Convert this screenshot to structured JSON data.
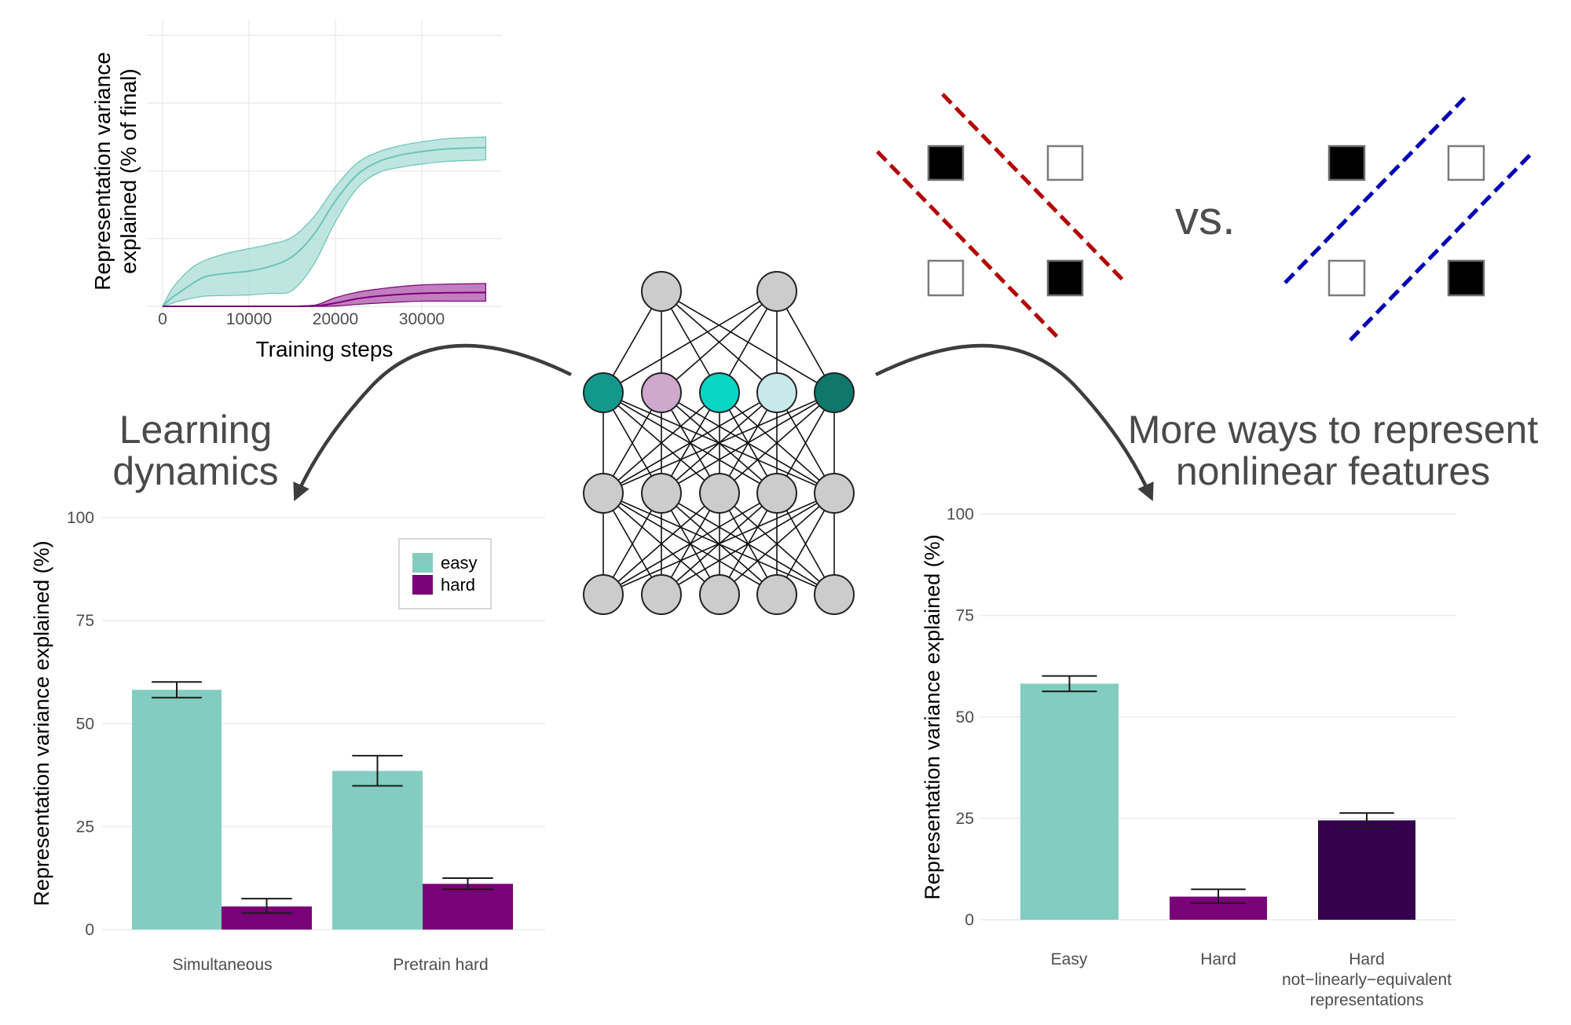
{
  "colors": {
    "easy": "#83ccc0",
    "hard": "#7a0177",
    "hard_nonlinear": "#35004d",
    "easy_band": "#a8dcd5",
    "easy_line": "#6cc4b4",
    "hard_band": "#b25fae",
    "hard_line": "#7a0177",
    "red_boundary": "#b40000",
    "blue_boundary": "#0000b4",
    "arrow": "#3d3d3d",
    "node_gray": "#cccccc",
    "node_hidden": [
      "#12998b",
      "#cfa8cc",
      "#0ad4c4",
      "#c8e9ea",
      "#0f776b"
    ]
  },
  "labels": {
    "learning_dynamics": [
      "Learning",
      "dynamics"
    ],
    "more_ways": [
      "More ways to represent",
      "nonlinear features"
    ],
    "vs": "vs."
  },
  "chart_data": [
    {
      "id": "learning-curve",
      "type": "area",
      "title": "",
      "xlabel": "Training steps",
      "ylabel": [
        "Representation variance",
        "explained (% of final)"
      ],
      "xlim": [
        0,
        38000
      ],
      "ylim": [
        0,
        100
      ],
      "xticks": [
        0,
        10000,
        20000,
        30000
      ],
      "xtick_labels": [
        "0",
        "10000",
        "20000",
        "30000"
      ],
      "yticks": [
        0,
        25,
        50,
        75,
        100
      ],
      "ytick_labels_visible": false,
      "grid": true,
      "series": [
        {
          "name": "easy",
          "x": [
            0,
            1000,
            2000,
            3500,
            5000,
            7500,
            10000,
            12500,
            15000,
            17500,
            20000,
            22500,
            25000,
            27500,
            30000,
            33000,
            37400
          ],
          "mean": [
            0,
            3.0,
            5.2,
            8.5,
            11.0,
            12.2,
            13.0,
            14.8,
            18.3,
            26.5,
            38.9,
            48.5,
            53.4,
            55.8,
            57.1,
            58.1,
            58.6
          ],
          "upper": [
            0,
            6.0,
            10.0,
            14.5,
            17.1,
            19.6,
            21.3,
            23.0,
            25.5,
            33.0,
            44.1,
            52.8,
            57.0,
            59.3,
            60.7,
            61.9,
            62.5
          ],
          "lower": [
            0,
            1.0,
            2.0,
            3.0,
            3.8,
            4.0,
            4.2,
            4.8,
            5.8,
            15.5,
            31.2,
            43.5,
            49.3,
            51.3,
            52.5,
            53.5,
            54.0
          ]
        },
        {
          "name": "hard",
          "x": [
            0,
            5000,
            10000,
            15000,
            17500,
            18500,
            20000,
            22500,
            25000,
            27500,
            30000,
            33000,
            37400
          ],
          "mean": [
            0,
            0,
            0,
            0,
            0.1,
            0.4,
            1.2,
            2.8,
            3.8,
            4.4,
            4.8,
            5.0,
            5.1
          ],
          "upper": [
            0,
            0,
            0,
            0.1,
            0.4,
            1.3,
            3.2,
            5.2,
            6.4,
            7.3,
            7.9,
            8.2,
            8.4
          ],
          "lower": [
            0,
            0,
            0,
            0,
            0,
            0,
            0.1,
            0.7,
            1.2,
            1.6,
            1.9,
            1.9,
            1.9
          ]
        }
      ]
    },
    {
      "id": "learning-dynamics-bars",
      "type": "bar",
      "title": "",
      "xlabel": "",
      "ylabel": "Representation variance explained (%)",
      "ylim": [
        0,
        100
      ],
      "yticks": [
        0,
        25,
        50,
        75,
        100
      ],
      "ytick_labels": [
        "0",
        "25",
        "50",
        "75",
        "100"
      ],
      "grid": true,
      "categories": [
        "Simultaneous",
        "Pretrain hard"
      ],
      "legend": {
        "position": "top-right",
        "entries": [
          "easy",
          "hard"
        ]
      },
      "series": [
        {
          "name": "easy",
          "values": [
            58.2,
            38.5
          ],
          "err_low": [
            56.3,
            34.9
          ],
          "err_high": [
            60.1,
            42.2
          ]
        },
        {
          "name": "hard",
          "values": [
            5.6,
            11.1
          ],
          "err_low": [
            4.0,
            9.8
          ],
          "err_high": [
            7.5,
            12.5
          ]
        }
      ]
    },
    {
      "id": "nonlinear-features-bars",
      "type": "bar",
      "title": "",
      "xlabel": "",
      "ylabel": "Representation variance explained (%)",
      "ylim": [
        0,
        100
      ],
      "yticks": [
        0,
        25,
        50,
        75,
        100
      ],
      "ytick_labels": [
        "0",
        "25",
        "50",
        "75",
        "100"
      ],
      "grid": true,
      "categories": [
        [
          "Easy"
        ],
        [
          "Hard"
        ],
        [
          "Hard",
          "not−linearly−equivalent",
          "representations"
        ]
      ],
      "values": [
        58.2,
        5.7,
        24.5
      ],
      "err_low": [
        56.3,
        4.1,
        22.6
      ],
      "err_high": [
        60.1,
        7.5,
        26.3
      ],
      "bar_colors": [
        "easy",
        "hard",
        "hard_nonlinear"
      ]
    }
  ],
  "network": {
    "layers": [
      {
        "name": "output",
        "nodes": 2
      },
      {
        "name": "hidden-colored",
        "nodes": 5
      },
      {
        "name": "hidden",
        "nodes": 5
      },
      {
        "name": "input",
        "nodes": 5
      }
    ]
  },
  "xor_panels": [
    {
      "name": "xor-panel-red",
      "squares": [
        {
          "pos": "top-left",
          "filled": true
        },
        {
          "pos": "top-right",
          "filled": false
        },
        {
          "pos": "bottom-left",
          "filled": false
        },
        {
          "pos": "bottom-right",
          "filled": true
        }
      ],
      "boundary_color": "red_boundary",
      "boundary_orientation": "anti-diagonal"
    },
    {
      "name": "xor-panel-blue",
      "squares": [
        {
          "pos": "top-left",
          "filled": true
        },
        {
          "pos": "top-right",
          "filled": false
        },
        {
          "pos": "bottom-left",
          "filled": false
        },
        {
          "pos": "bottom-right",
          "filled": true
        }
      ],
      "boundary_color": "blue_boundary",
      "boundary_orientation": "diagonal"
    }
  ]
}
